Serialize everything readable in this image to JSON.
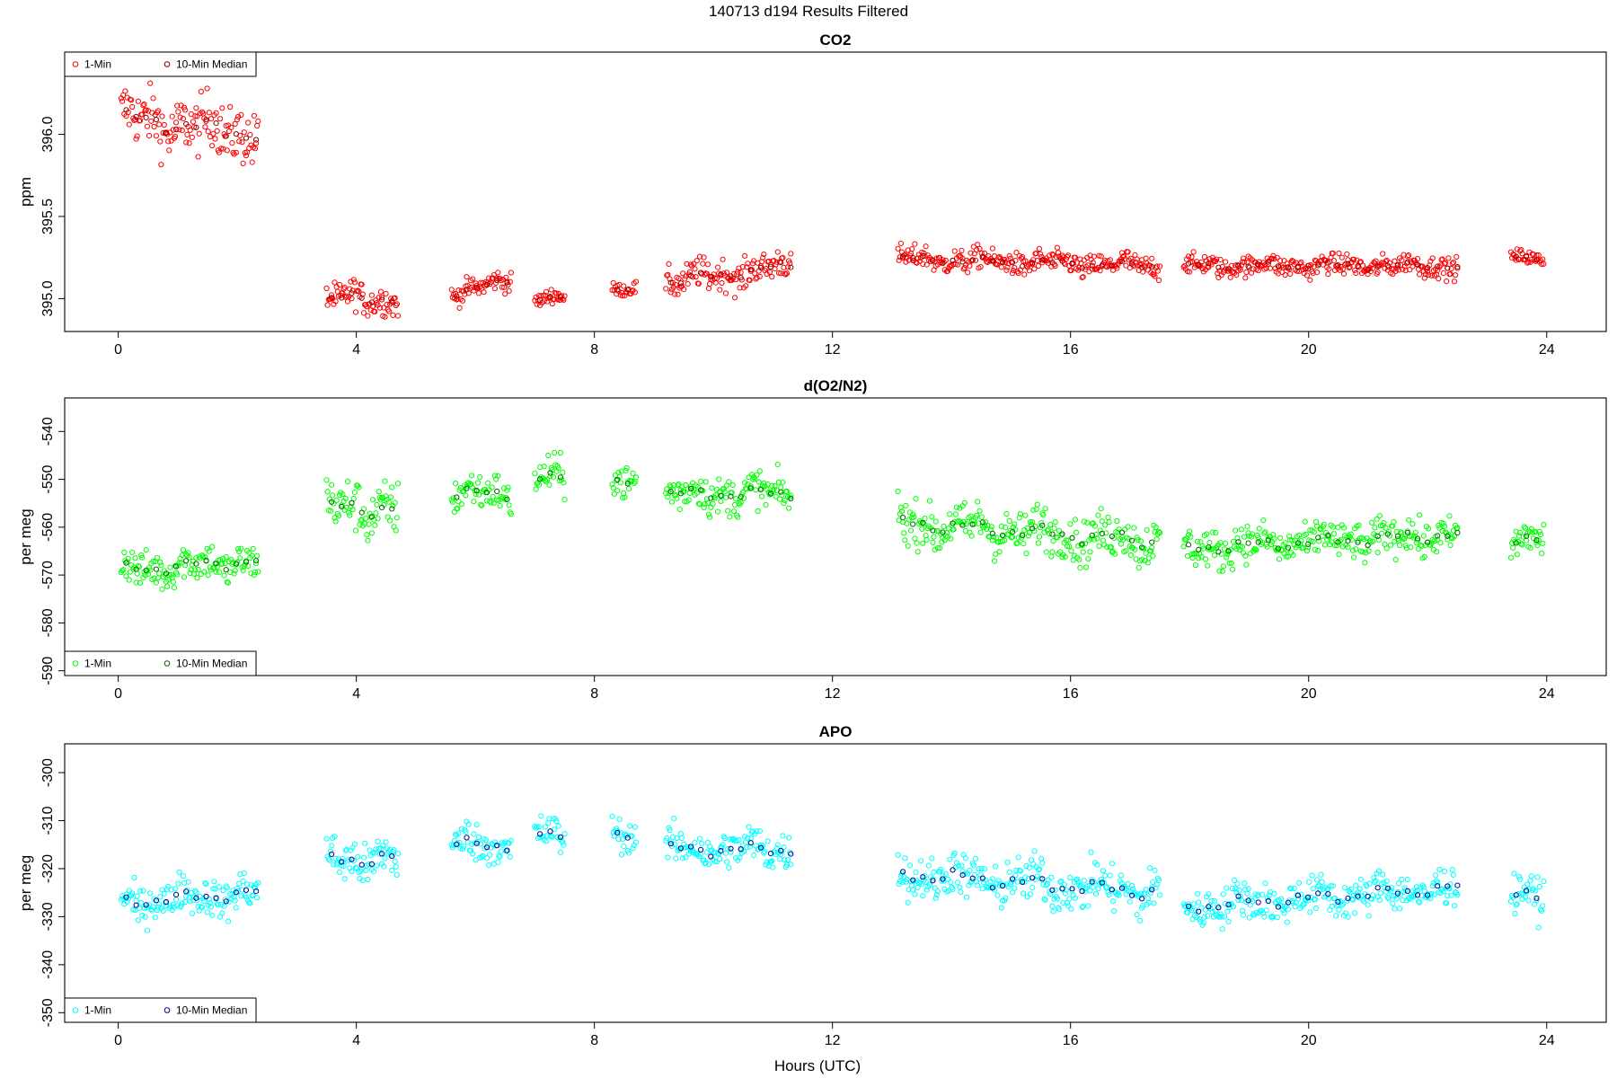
{
  "figure": {
    "title": "140713   d194   Results Filtered",
    "xlabel": "Hours (UTC)"
  },
  "chart_data": [
    {
      "type": "scatter",
      "title": "CO2",
      "xlabel": "",
      "ylabel": "ppm",
      "xlim": [
        -0.9,
        25
      ],
      "ylim": [
        394.8,
        396.5
      ],
      "xticks": [
        0,
        4,
        8,
        12,
        16,
        20,
        24
      ],
      "yticks": [
        395.0,
        395.5,
        396.0
      ],
      "ytick_labels": [
        "395.0",
        "395.5",
        "396.0"
      ],
      "legend_position": "top-left",
      "grid": false,
      "series": [
        {
          "name": "1-Min",
          "color": "#ff0000",
          "segments": [
            {
              "start": 0.05,
              "end": 2.35,
              "base": 396.05,
              "amp": 0.22,
              "trend": -0.1
            },
            {
              "start": 3.5,
              "end": 4.7,
              "base": 395.0,
              "amp": 0.12,
              "trend": 0.0
            },
            {
              "start": 5.6,
              "end": 6.6,
              "base": 395.07,
              "amp": 0.08,
              "trend": 0.08
            },
            {
              "start": 7.0,
              "end": 7.5,
              "base": 395.0,
              "amp": 0.06,
              "trend": 0.0
            },
            {
              "start": 8.3,
              "end": 8.7,
              "base": 395.05,
              "amp": 0.05,
              "trend": 0.0
            },
            {
              "start": 9.2,
              "end": 11.3,
              "base": 395.15,
              "amp": 0.12,
              "trend": 0.1
            },
            {
              "start": 13.1,
              "end": 17.5,
              "base": 395.22,
              "amp": 0.09,
              "trend": -0.05
            },
            {
              "start": 17.9,
              "end": 22.5,
              "base": 395.2,
              "amp": 0.08,
              "trend": 0.0
            },
            {
              "start": 23.4,
              "end": 23.95,
              "base": 395.25,
              "amp": 0.06,
              "trend": -0.05
            }
          ]
        },
        {
          "name": "10-Min Median",
          "color": "#8b0000"
        }
      ]
    },
    {
      "type": "scatter",
      "title": "d(O2/N2)",
      "xlabel": "",
      "ylabel": "per meg",
      "xlim": [
        -0.9,
        25
      ],
      "ylim": [
        -591,
        -533
      ],
      "xticks": [
        0,
        4,
        8,
        12,
        16,
        20,
        24
      ],
      "yticks": [
        -590,
        -580,
        -570,
        -560,
        -550,
        -540
      ],
      "ytick_labels": [
        "-590",
        "-580",
        "-570",
        "-560",
        "-550",
        "-540"
      ],
      "legend_position": "bottom-left",
      "grid": false,
      "series": [
        {
          "name": "1-Min",
          "color": "#00ff00",
          "segments": [
            {
              "start": 0.05,
              "end": 2.35,
              "base": -568,
              "amp": 5,
              "trend": 2
            },
            {
              "start": 3.5,
              "end": 4.7,
              "base": -556,
              "amp": 7,
              "trend": 0
            },
            {
              "start": 5.6,
              "end": 6.6,
              "base": -553,
              "amp": 5,
              "trend": 0
            },
            {
              "start": 7.0,
              "end": 7.5,
              "base": -550,
              "amp": 5,
              "trend": 0
            },
            {
              "start": 8.3,
              "end": 8.7,
              "base": -551,
              "amp": 5,
              "trend": 0
            },
            {
              "start": 9.2,
              "end": 11.3,
              "base": -553,
              "amp": 5,
              "trend": 0
            },
            {
              "start": 13.1,
              "end": 17.5,
              "base": -561,
              "amp": 6,
              "trend": -4
            },
            {
              "start": 17.9,
              "end": 22.5,
              "base": -563,
              "amp": 5,
              "trend": 3
            },
            {
              "start": 23.4,
              "end": 23.95,
              "base": -563,
              "amp": 5,
              "trend": 0
            }
          ]
        },
        {
          "name": "10-Min Median",
          "color": "#006400"
        }
      ]
    },
    {
      "type": "scatter",
      "title": "APO",
      "xlabel": "Hours (UTC)",
      "ylabel": "per meg",
      "xlim": [
        -0.9,
        25
      ],
      "ylim": [
        -352,
        -294
      ],
      "xticks": [
        0,
        4,
        8,
        12,
        16,
        20,
        24
      ],
      "yticks": [
        -350,
        -340,
        -330,
        -320,
        -310,
        -300
      ],
      "ytick_labels": [
        "-350",
        "-340",
        "-330",
        "-320",
        "-310",
        "-300"
      ],
      "legend_position": "bottom-left",
      "grid": false,
      "series": [
        {
          "name": "1-Min",
          "color": "#00ffff",
          "segments": [
            {
              "start": 0.05,
              "end": 2.35,
              "base": -326,
              "amp": 5,
              "trend": 2
            },
            {
              "start": 3.5,
              "end": 4.7,
              "base": -318,
              "amp": 6,
              "trend": 0
            },
            {
              "start": 5.6,
              "end": 6.6,
              "base": -315,
              "amp": 5,
              "trend": 0
            },
            {
              "start": 7.0,
              "end": 7.5,
              "base": -313,
              "amp": 5,
              "trend": 0
            },
            {
              "start": 8.3,
              "end": 8.7,
              "base": -313,
              "amp": 4,
              "trend": 0
            },
            {
              "start": 9.2,
              "end": 11.3,
              "base": -316,
              "amp": 5,
              "trend": 0
            },
            {
              "start": 13.1,
              "end": 17.5,
              "base": -323,
              "amp": 6,
              "trend": -4
            },
            {
              "start": 17.9,
              "end": 22.5,
              "base": -326,
              "amp": 5,
              "trend": 4
            },
            {
              "start": 23.4,
              "end": 23.95,
              "base": -326,
              "amp": 5,
              "trend": 0
            }
          ]
        },
        {
          "name": "10-Min Median",
          "color": "#00008b"
        }
      ]
    }
  ]
}
